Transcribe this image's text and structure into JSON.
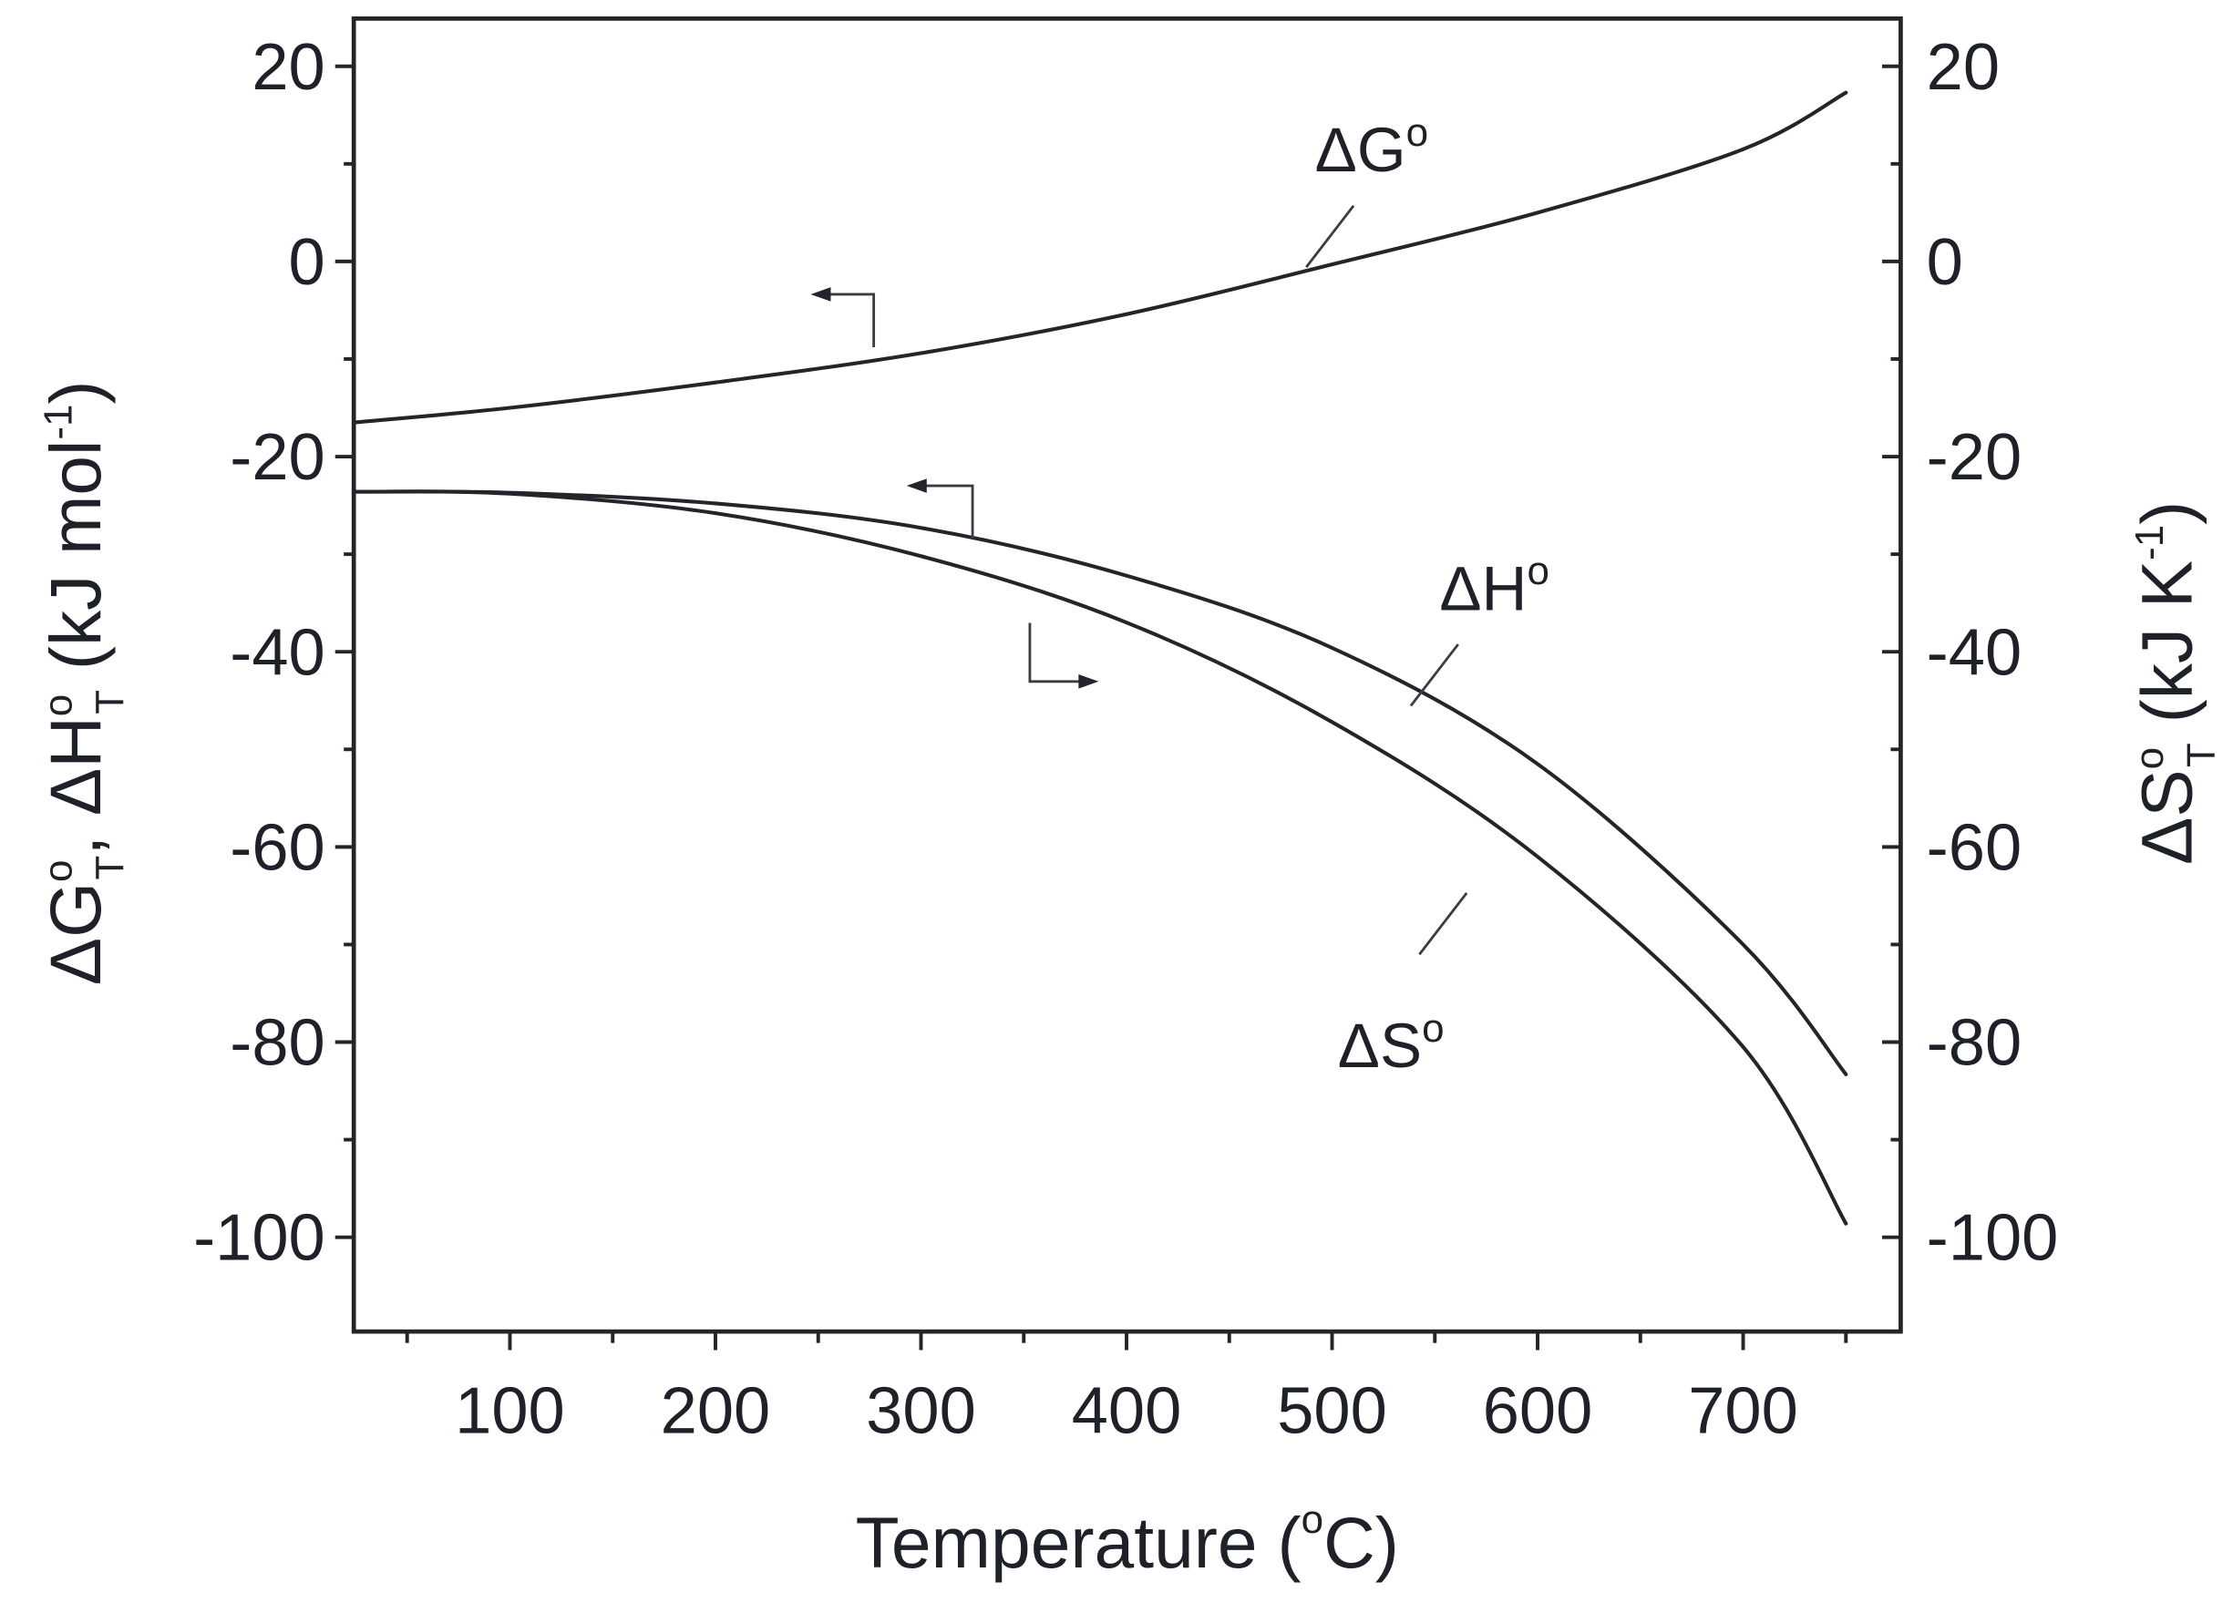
{
  "chart_data": {
    "type": "line",
    "title": "",
    "xlabel": "Temperature (°C)",
    "ylabel_left": "ΔG°T, ΔH°T (kJ mol⁻¹)",
    "ylabel_right": "ΔS°T (kJ K⁻¹)",
    "xlim": [
      24,
      777
    ],
    "ylim_left": [
      -110,
      25
    ],
    "ylim_right": [
      -110,
      25
    ],
    "x_ticks": [
      100,
      200,
      300,
      400,
      500,
      600,
      700
    ],
    "x_tick_labels": [
      "100",
      "200",
      "300",
      "400",
      "500",
      "600",
      "700"
    ],
    "y_ticks_left": [
      20,
      0,
      -20,
      -40,
      -60,
      -80,
      -100
    ],
    "y_tick_labels_left": [
      "20",
      "0",
      "-20",
      "-40",
      "-60",
      "-80",
      "-100"
    ],
    "y_ticks_right": [
      20,
      0,
      -20,
      -40,
      -60,
      -80,
      -100
    ],
    "y_tick_labels_right": [
      "20",
      "0",
      "-20",
      "-40",
      "-60",
      "-80",
      "-100"
    ],
    "grid": false,
    "legend": "none (inline curve labels with arrows indicating axis)",
    "x": [
      24,
      100,
      200,
      300,
      400,
      500,
      600,
      700,
      750
    ],
    "series": [
      {
        "name": "ΔG°",
        "axis": "left",
        "values": [
          -16.5,
          -15.0,
          -12.4,
          -9.4,
          -5.4,
          -0.3,
          5.0,
          11.5,
          17.3
        ]
      },
      {
        "name": "ΔH°",
        "axis": "left",
        "values": [
          -23.6,
          -23.7,
          -24.8,
          -27.3,
          -32.2,
          -39.6,
          -51.5,
          -70.0,
          -83.3
        ]
      },
      {
        "name": "ΔS°",
        "axis": "right",
        "values": [
          -23.6,
          -23.8,
          -25.8,
          -30.2,
          -37.0,
          -47.2,
          -61.0,
          -80.5,
          -98.6
        ]
      }
    ],
    "annotations": [
      {
        "text": "ΔG°",
        "arrow": "left"
      },
      {
        "text": "ΔH°",
        "arrow": "left"
      },
      {
        "text": "ΔS°",
        "arrow": "right"
      }
    ]
  },
  "labels": {
    "x_title_main": "Temperature (",
    "x_title_deg": "o",
    "x_title_end": "C)",
    "dG_delta": "ΔG",
    "dH_delta": "ΔH",
    "dS_delta": "ΔS",
    "deg": "o"
  }
}
